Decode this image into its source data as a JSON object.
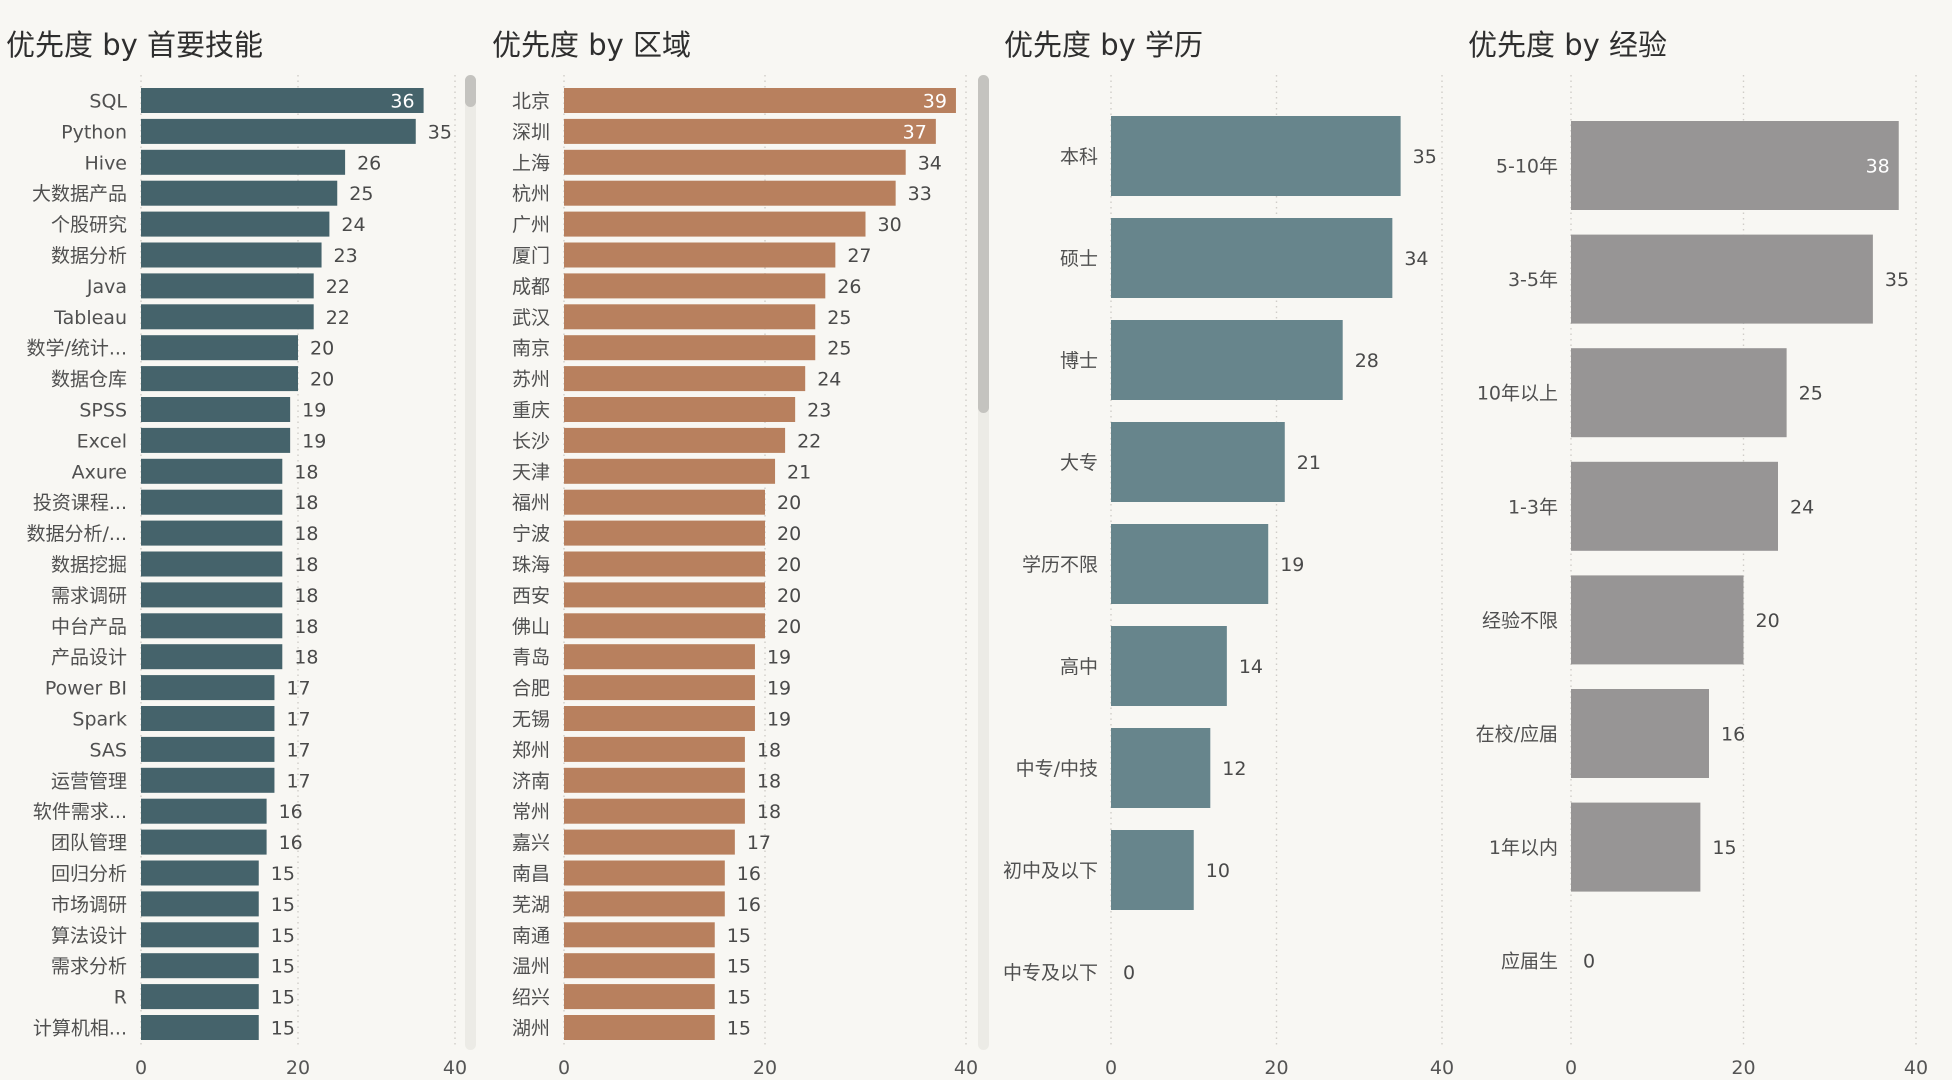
{
  "chart_data": [
    {
      "id": "skills",
      "type": "bar",
      "orientation": "horizontal",
      "title": "优先度 by 首要技能",
      "color": "#45636b",
      "categories": [
        "SQL",
        "Python",
        "Hive",
        "大数据产品",
        "个股研究",
        "数据分析",
        "Java",
        "Tableau",
        "数学/统计...",
        "数据仓库",
        "SPSS",
        "Excel",
        "Axure",
        "投资课程...",
        "数据分析/...",
        "数据挖掘",
        "需求调研",
        "中台产品",
        "产品设计",
        "Power BI",
        "Spark",
        "SAS",
        "运营管理",
        "软件需求...",
        "团队管理",
        "回归分析",
        "市场调研",
        "算法设计",
        "需求分析",
        "R",
        "计算机相..."
      ],
      "values": [
        36,
        35,
        26,
        25,
        24,
        23,
        22,
        22,
        20,
        20,
        19,
        19,
        18,
        18,
        18,
        18,
        18,
        18,
        18,
        17,
        17,
        17,
        17,
        16,
        16,
        15,
        15,
        15,
        15,
        15,
        15
      ],
      "xlim": [
        0,
        40
      ],
      "xticks": [
        0,
        20,
        40
      ],
      "grid": true,
      "scrollbar": true
    },
    {
      "id": "region",
      "type": "bar",
      "orientation": "horizontal",
      "title": "优先度 by 区域",
      "color": "#b8805e",
      "categories": [
        "北京",
        "深圳",
        "上海",
        "杭州",
        "广州",
        "厦门",
        "成都",
        "武汉",
        "南京",
        "苏州",
        "重庆",
        "长沙",
        "天津",
        "福州",
        "宁波",
        "珠海",
        "西安",
        "佛山",
        "青岛",
        "合肥",
        "无锡",
        "郑州",
        "济南",
        "常州",
        "嘉兴",
        "南昌",
        "芜湖",
        "南通",
        "温州",
        "绍兴",
        "湖州"
      ],
      "values": [
        39,
        37,
        34,
        33,
        30,
        27,
        26,
        25,
        25,
        24,
        23,
        22,
        21,
        20,
        20,
        20,
        20,
        20,
        19,
        19,
        19,
        18,
        18,
        18,
        17,
        16,
        16,
        15,
        15,
        15,
        15
      ],
      "xlim": [
        0,
        40
      ],
      "xticks": [
        0,
        20,
        40
      ],
      "grid": true,
      "scrollbar": true
    },
    {
      "id": "education",
      "type": "bar",
      "orientation": "horizontal",
      "title": "优先度 by 学历",
      "color": "#67858c",
      "categories": [
        "本科",
        "硕士",
        "博士",
        "大专",
        "学历不限",
        "高中",
        "中专/中技",
        "初中及以下",
        "中专及以下"
      ],
      "values": [
        35,
        34,
        28,
        21,
        19,
        14,
        12,
        10,
        0
      ],
      "xlim": [
        0,
        40
      ],
      "xticks": [
        0,
        20,
        40
      ],
      "grid": true,
      "scrollbar": false
    },
    {
      "id": "experience",
      "type": "bar",
      "orientation": "horizontal",
      "title": "优先度 by 经验",
      "color": "#979595",
      "categories": [
        "5-10年",
        "3-5年",
        "10年以上",
        "1-3年",
        "经验不限",
        "在校/应届",
        "1年以内",
        "应届生"
      ],
      "values": [
        38,
        35,
        25,
        24,
        20,
        16,
        15,
        0
      ],
      "xlim": [
        0,
        40
      ],
      "xticks": [
        0,
        20,
        40
      ],
      "grid": true,
      "scrollbar": false
    }
  ]
}
